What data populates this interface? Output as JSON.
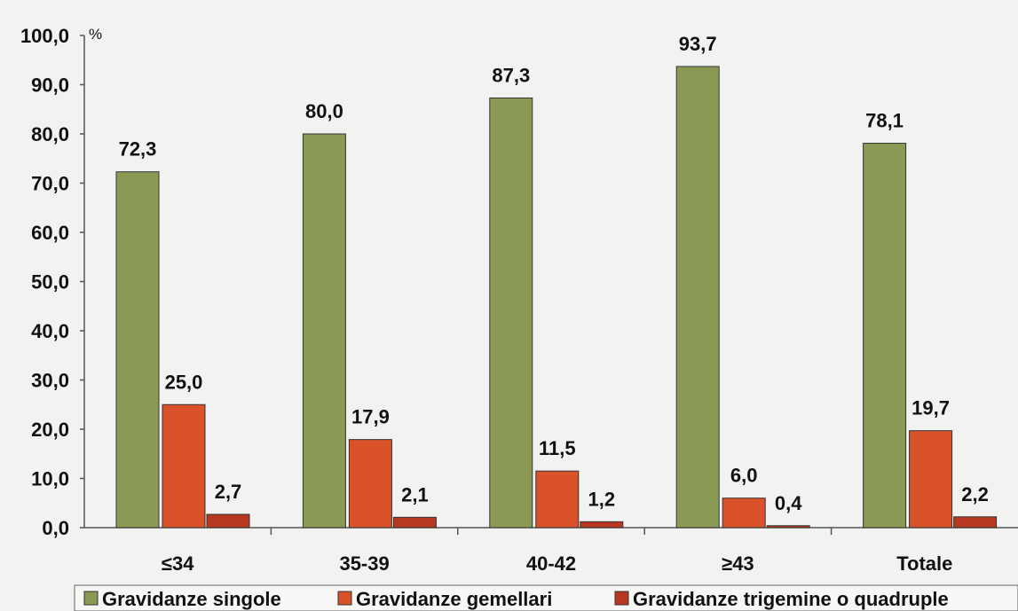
{
  "chart_data": {
    "type": "bar",
    "title": "",
    "xlabel": "",
    "ylabel": "",
    "unit": "%",
    "ylim": [
      0,
      100
    ],
    "yticks": [
      "0,0",
      "10,0",
      "20,0",
      "30,0",
      "40,0",
      "50,0",
      "60,0",
      "70,0",
      "80,0",
      "90,0",
      "100,0"
    ],
    "categories": [
      "≤34",
      "35-39",
      "40-42",
      "≥43",
      "Totale"
    ],
    "series": [
      {
        "name": "Gravidanze singole",
        "color": "#8a9a55",
        "values": [
          72.3,
          80.0,
          87.3,
          93.7,
          78.1
        ],
        "labels": [
          "72,3",
          "80,0",
          "87,3",
          "93,7",
          "78,1"
        ]
      },
      {
        "name": "Gravidanze gemellari",
        "color": "#d9522a",
        "values": [
          25.0,
          17.9,
          11.5,
          6.0,
          19.7
        ],
        "labels": [
          "25,0",
          "17,9",
          "11,5",
          "6,0",
          "19,7"
        ]
      },
      {
        "name": "Gravidanze trigemine o quadruple",
        "color": "#b8381f",
        "values": [
          2.7,
          2.1,
          1.2,
          0.4,
          2.2
        ],
        "labels": [
          "2,7",
          "2,1",
          "1,2",
          "0,4",
          "2,2"
        ]
      }
    ],
    "grid": false,
    "legend_position": "bottom"
  }
}
